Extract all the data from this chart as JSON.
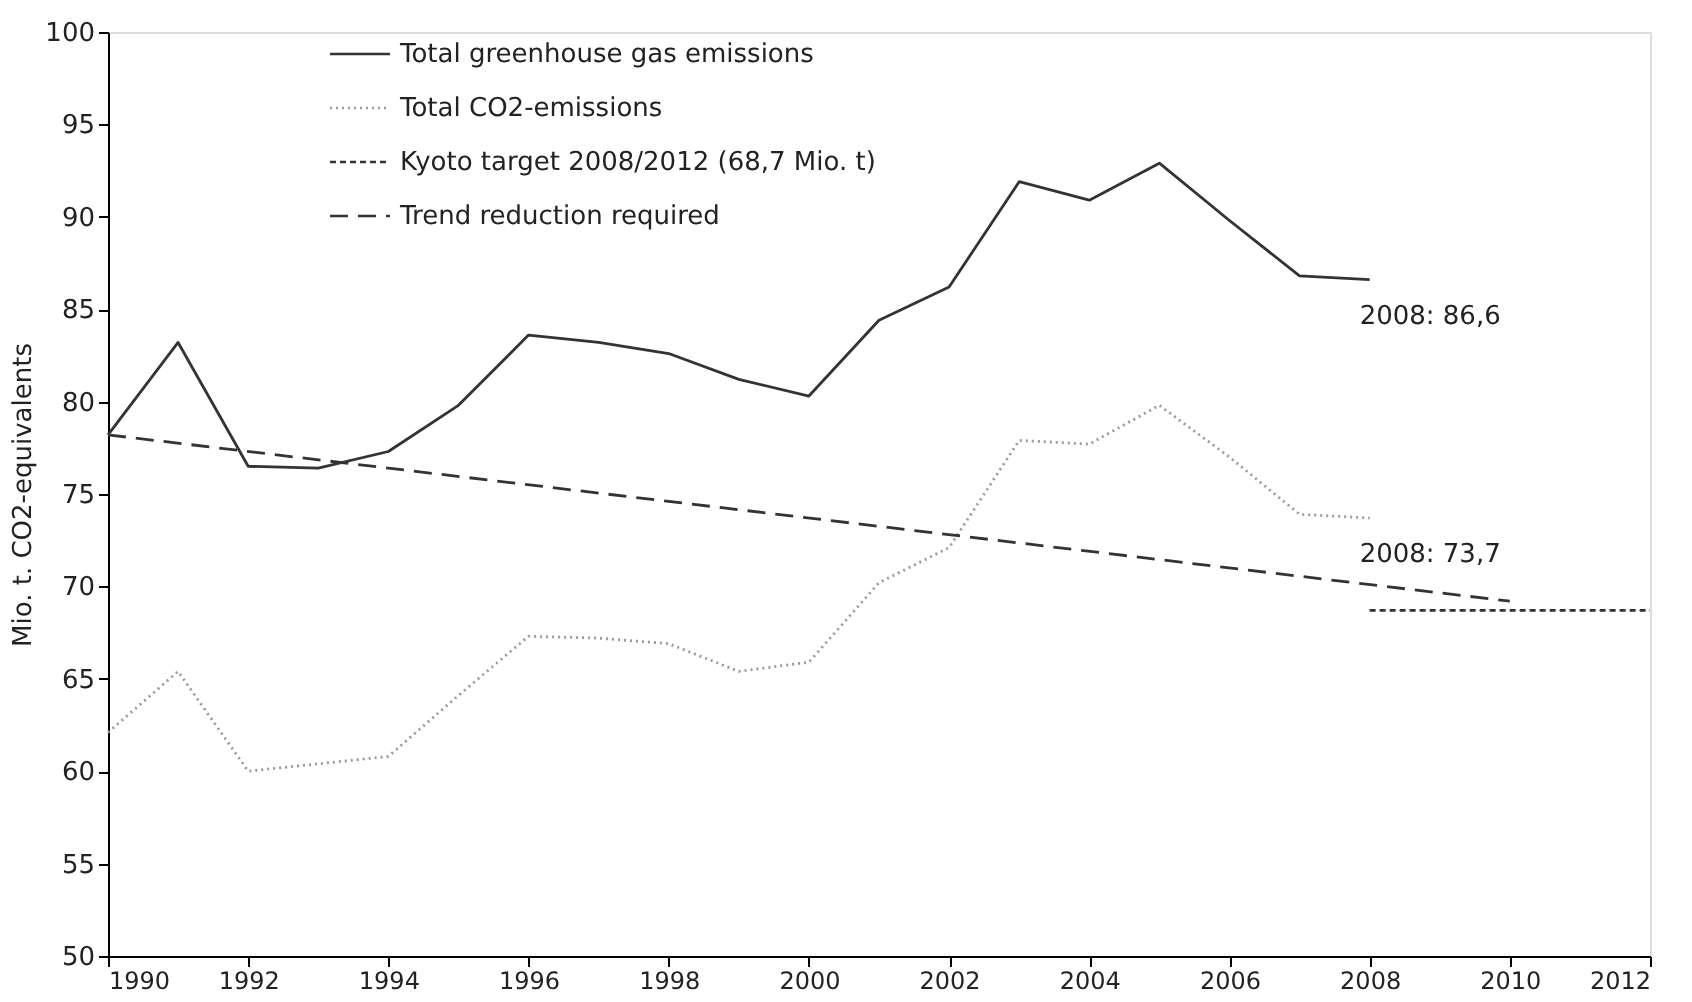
{
  "chart_data": {
    "type": "line",
    "ylabel": "Mio. t. CO2-equivalents",
    "xlim": [
      1990,
      2012
    ],
    "xticks": [
      1990,
      1992,
      1994,
      1996,
      1998,
      2000,
      2002,
      2004,
      2006,
      2008,
      2010,
      2012
    ],
    "ylim": [
      50,
      100
    ],
    "yticks": [
      50,
      55,
      60,
      65,
      70,
      75,
      80,
      85,
      90,
      95,
      100
    ],
    "grid": false,
    "legend": "top",
    "marker": "none",
    "series": [
      {
        "name": "Total greenhouse gas emissions",
        "color": "#333333",
        "line_style": "solid",
        "x": [
          1990,
          1991,
          1992,
          1993,
          1994,
          1995,
          1996,
          1997,
          1998,
          1999,
          2000,
          2001,
          2002,
          2003,
          2004,
          2005,
          2006,
          2007,
          2008
        ],
        "values": [
          78.2,
          83.2,
          76.5,
          76.4,
          77.3,
          79.8,
          83.6,
          83.2,
          82.6,
          81.2,
          80.3,
          84.4,
          86.2,
          91.9,
          90.9,
          92.9,
          89.8,
          86.8,
          86.6
        ]
      },
      {
        "name": "Total CO2-emissions",
        "color": "#999999",
        "line_style": "dotted",
        "x": [
          1990,
          1991,
          1992,
          1993,
          1994,
          1995,
          1996,
          1997,
          1998,
          1999,
          2000,
          2001,
          2002,
          2003,
          2004,
          2005,
          2006,
          2007,
          2008
        ],
        "values": [
          62.1,
          65.4,
          60.0,
          60.4,
          60.8,
          64.1,
          67.3,
          67.2,
          66.9,
          65.4,
          65.9,
          70.2,
          72.1,
          77.9,
          77.7,
          79.8,
          77.0,
          73.9,
          73.7
        ]
      },
      {
        "name": "Kyoto target 2008/2012 (68,7 Mio. t)",
        "color": "#333333",
        "line_style": "dotted",
        "x": [
          2008,
          2012
        ],
        "values": [
          68.7,
          68.7
        ]
      },
      {
        "name": "Trend reduction required",
        "color": "#333333",
        "line_style": "dashed",
        "x": [
          1990,
          2010
        ],
        "values": [
          78.2,
          69.2
        ]
      }
    ],
    "annotations": [
      {
        "text": "2008: 86,6",
        "x": 2008,
        "y": 86.6
      },
      {
        "text": "2008: 73,7",
        "x": 2008,
        "y": 73.7
      }
    ]
  }
}
